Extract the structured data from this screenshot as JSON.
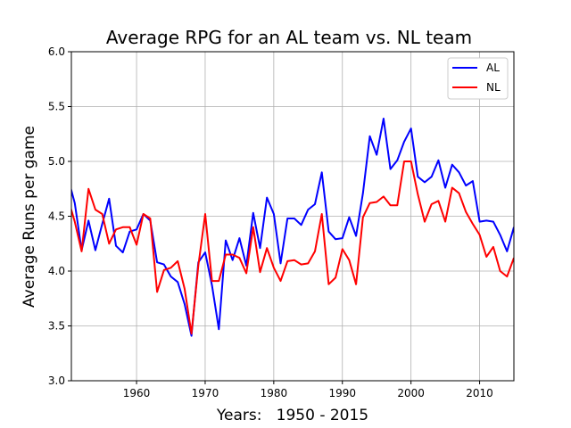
{
  "chart_data": {
    "type": "line",
    "title": "Average RPG for an AL team vs. NL team",
    "xlabel": "Years:   1950 - 2015",
    "ylabel": "Average Runs per game",
    "xlim": [
      1950.5,
      2015
    ],
    "ylim": [
      3.0,
      6.0
    ],
    "xticks": [
      1960,
      1970,
      1980,
      1990,
      2000,
      2010
    ],
    "yticks": [
      3.0,
      3.5,
      4.0,
      4.5,
      5.0,
      5.5,
      6.0
    ],
    "grid": true,
    "legend_position": "top-right",
    "x": [
      1950,
      1951,
      1952,
      1953,
      1954,
      1955,
      1956,
      1957,
      1958,
      1959,
      1960,
      1961,
      1962,
      1963,
      1964,
      1965,
      1966,
      1967,
      1968,
      1969,
      1970,
      1971,
      1972,
      1973,
      1974,
      1975,
      1976,
      1977,
      1978,
      1979,
      1980,
      1981,
      1982,
      1983,
      1984,
      1985,
      1986,
      1987,
      1988,
      1989,
      1990,
      1991,
      1992,
      1993,
      1994,
      1995,
      1996,
      1997,
      1998,
      1999,
      2000,
      2001,
      2002,
      2003,
      2004,
      2005,
      2006,
      2007,
      2008,
      2009,
      2010,
      2011,
      2012,
      2013,
      2014,
      2015
    ],
    "series": [
      {
        "name": "AL",
        "color": "#0000ff",
        "values": [
          4.85,
          4.62,
          4.19,
          4.46,
          4.19,
          4.43,
          4.66,
          4.23,
          4.17,
          4.36,
          4.38,
          4.52,
          4.46,
          4.08,
          4.06,
          3.95,
          3.9,
          3.7,
          3.41,
          4.08,
          4.17,
          3.87,
          3.47,
          4.28,
          4.1,
          4.3,
          4.05,
          4.53,
          4.21,
          4.67,
          4.52,
          4.07,
          4.48,
          4.48,
          4.42,
          4.56,
          4.61,
          4.9,
          4.36,
          4.29,
          4.3,
          4.49,
          4.32,
          4.71,
          5.23,
          5.06,
          5.39,
          4.93,
          5.01,
          5.18,
          5.3,
          4.86,
          4.81,
          4.86,
          5.01,
          4.76,
          4.97,
          4.9,
          4.78,
          4.82,
          4.45,
          4.46,
          4.45,
          4.33,
          4.18,
          4.4
        ]
      },
      {
        "name": "NL",
        "color": "#ff0000",
        "values": [
          4.66,
          4.45,
          4.18,
          4.75,
          4.56,
          4.52,
          4.25,
          4.38,
          4.4,
          4.4,
          4.24,
          4.52,
          4.48,
          3.81,
          4.01,
          4.03,
          4.09,
          3.84,
          3.43,
          4.05,
          4.52,
          3.91,
          3.91,
          4.15,
          4.15,
          4.12,
          3.98,
          4.4,
          3.99,
          4.21,
          4.03,
          3.91,
          4.09,
          4.1,
          4.06,
          4.07,
          4.18,
          4.52,
          3.88,
          3.94,
          4.2,
          4.1,
          3.88,
          4.49,
          4.62,
          4.63,
          4.68,
          4.6,
          4.6,
          5.0,
          5.0,
          4.7,
          4.45,
          4.61,
          4.64,
          4.45,
          4.76,
          4.71,
          4.54,
          4.43,
          4.33,
          4.13,
          4.22,
          4.0,
          3.95,
          4.12
        ]
      }
    ]
  }
}
